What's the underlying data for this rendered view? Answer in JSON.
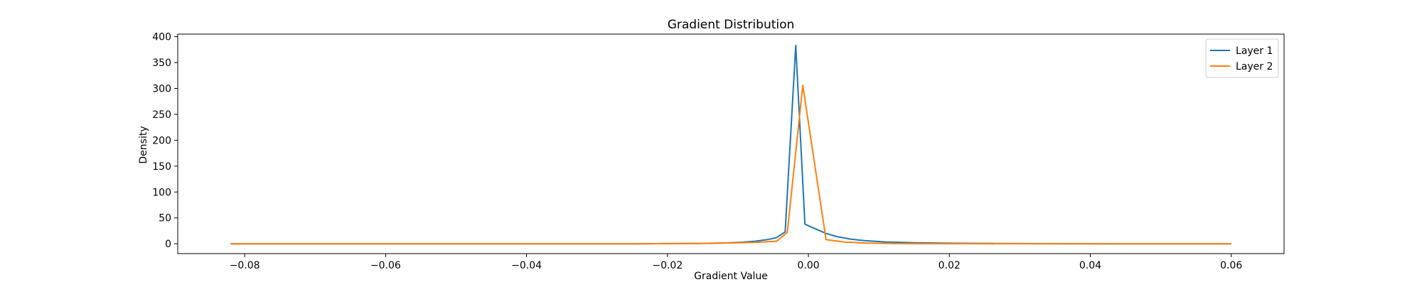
{
  "chart_data": {
    "type": "line",
    "title": "Gradient Distribution",
    "xlabel": "Gradient Value",
    "ylabel": "Density",
    "xlim": [
      -0.0895,
      0.0675
    ],
    "ylim": [
      -19,
      405
    ],
    "xticks": [
      -0.08,
      -0.06,
      -0.04,
      -0.02,
      0.0,
      0.02,
      0.04,
      0.06
    ],
    "xtick_labels": [
      "−0.08",
      "−0.06",
      "−0.04",
      "−0.02",
      "0.00",
      "0.02",
      "0.04",
      "0.06"
    ],
    "yticks": [
      0,
      50,
      100,
      150,
      200,
      250,
      300,
      350,
      400
    ],
    "ytick_labels": [
      "0",
      "50",
      "100",
      "150",
      "200",
      "250",
      "300",
      "350",
      "400"
    ],
    "grid": false,
    "legend_position": "top-right",
    "series": [
      {
        "name": "Layer 1",
        "color": "#1f77b4",
        "x": [
          -0.082,
          -0.06,
          -0.04,
          -0.025,
          -0.02,
          -0.016,
          -0.012,
          -0.0095,
          -0.0075,
          -0.0058,
          -0.0045,
          -0.0033,
          -0.0018,
          -0.0005,
          0.0008,
          0.0025,
          0.004,
          0.006,
          0.008,
          0.011,
          0.015,
          0.02,
          0.03,
          0.045,
          0.06
        ],
        "y": [
          0,
          0,
          0,
          0,
          0.3,
          0.6,
          1.5,
          3,
          5,
          8,
          12,
          23,
          383,
          38,
          30,
          20,
          14,
          9,
          6,
          3.5,
          2,
          1,
          0.3,
          0,
          0
        ]
      },
      {
        "name": "Layer 2",
        "color": "#ff7f0e",
        "x": [
          -0.082,
          -0.06,
          -0.04,
          -0.025,
          -0.02,
          -0.015,
          -0.01,
          -0.007,
          -0.0045,
          -0.003,
          -0.0008,
          0.0025,
          0.005,
          0.008,
          0.012,
          0.02,
          0.04,
          0.06
        ],
        "y": [
          0,
          0,
          0,
          0,
          0.3,
          0.8,
          2,
          3,
          5,
          22,
          306,
          8,
          3.5,
          1.5,
          0.5,
          0.2,
          0,
          0
        ]
      }
    ]
  }
}
